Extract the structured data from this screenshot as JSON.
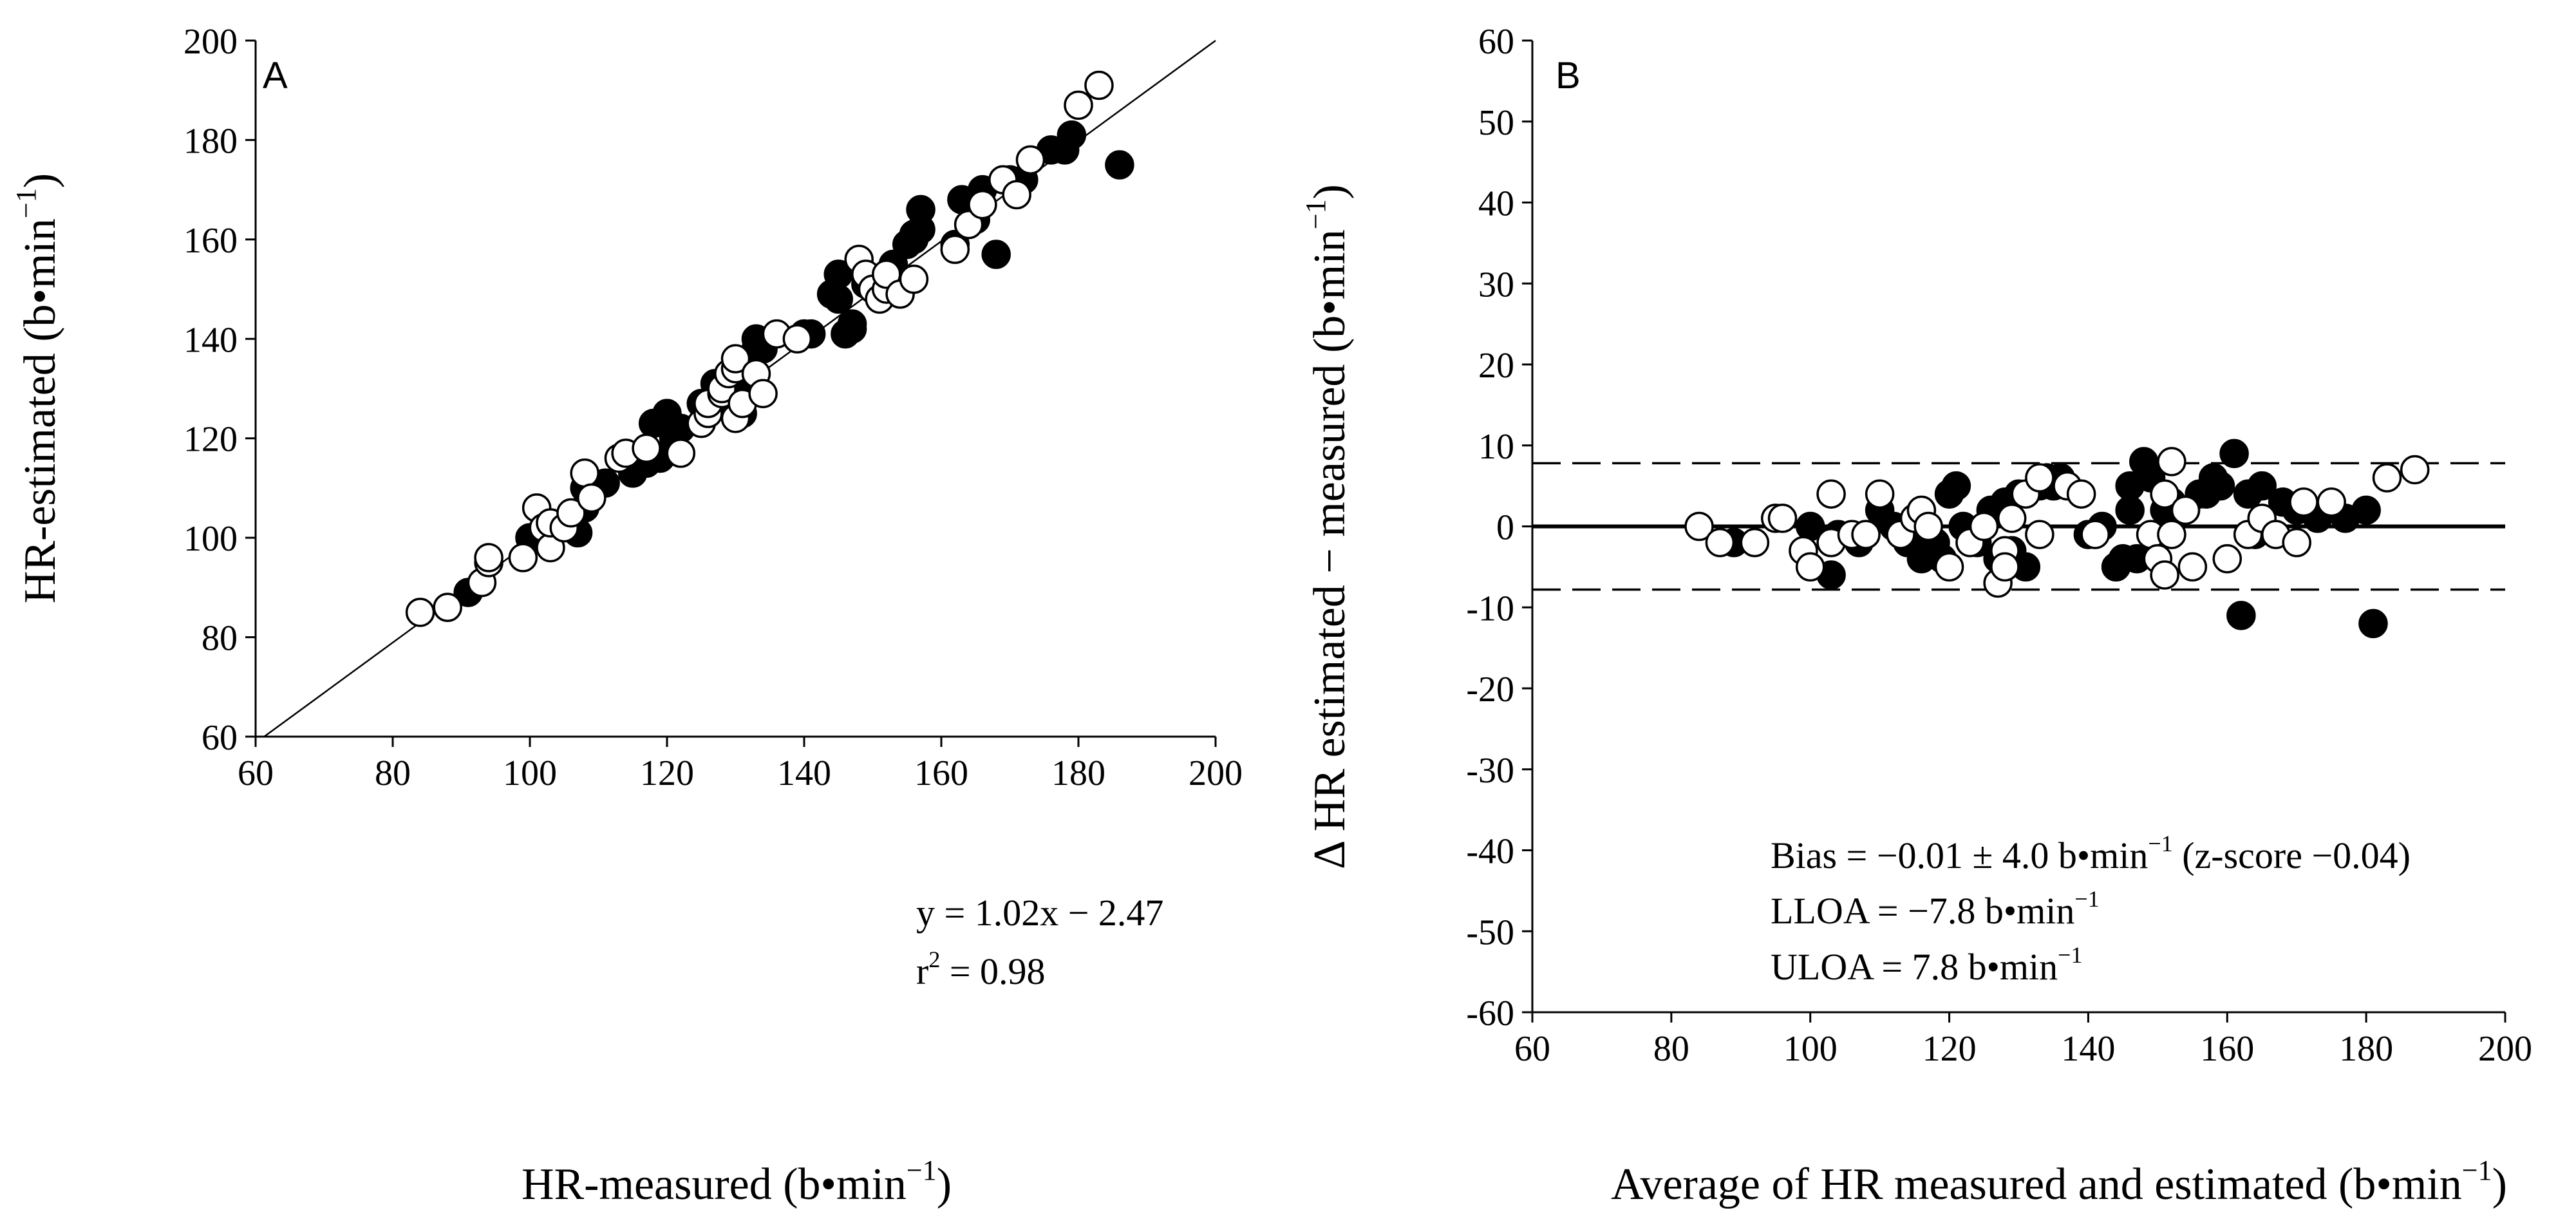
{
  "colors": {
    "ink": "#000000",
    "paper": "#ffffff"
  },
  "chart_data": [
    {
      "type": "scatter",
      "panel_label": "A",
      "title": "",
      "xlabel": "HR-measured (b•min",
      "xlabel_sup": "−1",
      "xlabel_close": ")",
      "ylabel": "HR-estimated (b•min",
      "ylabel_sup": "−1",
      "ylabel_close": ")",
      "xlim": [
        60,
        200
      ],
      "ylim": [
        60,
        200
      ],
      "xticks": [
        "60",
        "80",
        "100",
        "120",
        "140",
        "160",
        "180",
        "200"
      ],
      "yticks": [
        "60",
        "80",
        "100",
        "120",
        "140",
        "160",
        "180",
        "200"
      ],
      "regression": {
        "slope": 1.02,
        "intercept": -2.47
      },
      "annotations": {
        "equation": "y = 1.02x − 2.47",
        "r2_prefix": "r",
        "r2_sup": "2",
        "r2_value": " = 0.98"
      },
      "series": [
        {
          "name": "filled",
          "marker": "filled-circle",
          "points": [
            [
              91,
              89
            ],
            [
              100,
              100
            ],
            [
              107,
              101
            ],
            [
              108,
              106
            ],
            [
              108,
              110
            ],
            [
              111,
              111
            ],
            [
              115,
              113
            ],
            [
              117,
              115
            ],
            [
              118,
              123
            ],
            [
              119,
              116
            ],
            [
              120,
              124
            ],
            [
              120,
              125
            ],
            [
              121,
              120
            ],
            [
              122,
              122
            ],
            [
              125,
              127
            ],
            [
              127,
              131
            ],
            [
              128,
              128
            ],
            [
              131,
              125
            ],
            [
              132,
              130
            ],
            [
              133,
              138
            ],
            [
              133,
              140
            ],
            [
              134,
              138
            ],
            [
              140,
              141
            ],
            [
              141,
              141
            ],
            [
              144,
              149
            ],
            [
              145,
              148
            ],
            [
              145,
              153
            ],
            [
              146,
              141
            ],
            [
              147,
              142
            ],
            [
              147,
              143
            ],
            [
              149,
              151
            ],
            [
              153,
              155
            ],
            [
              155,
              159
            ],
            [
              156,
              160
            ],
            [
              156,
              161
            ],
            [
              157,
              166
            ],
            [
              157,
              162
            ],
            [
              162,
              159
            ],
            [
              163,
              168
            ],
            [
              165,
              164
            ],
            [
              165,
              166
            ],
            [
              166,
              170
            ],
            [
              168,
              157
            ],
            [
              170,
              172
            ],
            [
              172,
              172
            ],
            [
              176,
              178
            ],
            [
              178,
              178
            ],
            [
              179,
              181
            ],
            [
              186,
              175
            ]
          ]
        },
        {
          "name": "open",
          "marker": "open-circle",
          "points": [
            [
              84,
              85
            ],
            [
              88,
              86
            ],
            [
              93,
              91
            ],
            [
              94,
              95
            ],
            [
              94,
              96
            ],
            [
              99,
              96
            ],
            [
              101,
              106
            ],
            [
              102,
              102
            ],
            [
              103,
              98
            ],
            [
              103,
              103
            ],
            [
              105,
              102
            ],
            [
              106,
              105
            ],
            [
              108,
              113
            ],
            [
              109,
              108
            ],
            [
              113,
              116
            ],
            [
              114,
              117
            ],
            [
              117,
              118
            ],
            [
              122,
              117
            ],
            [
              125,
              123
            ],
            [
              126,
              125
            ],
            [
              126,
              127
            ],
            [
              128,
              129
            ],
            [
              128,
              130
            ],
            [
              129,
              133
            ],
            [
              130,
              124
            ],
            [
              130,
              134
            ],
            [
              130,
              136
            ],
            [
              131,
              127
            ],
            [
              133,
              133
            ],
            [
              134,
              129
            ],
            [
              136,
              141
            ],
            [
              139,
              140
            ],
            [
              148,
              156
            ],
            [
              149,
              153
            ],
            [
              150,
              150
            ],
            [
              151,
              148
            ],
            [
              152,
              150
            ],
            [
              152,
              153
            ],
            [
              154,
              149
            ],
            [
              156,
              152
            ],
            [
              162,
              158
            ],
            [
              164,
              163
            ],
            [
              166,
              167
            ],
            [
              169,
              172
            ],
            [
              171,
              169
            ],
            [
              173,
              176
            ],
            [
              180,
              187
            ],
            [
              183,
              191
            ]
          ]
        }
      ]
    },
    {
      "type": "scatter",
      "panel_label": "B",
      "title": "",
      "xlabel": "Average of HR measured and estimated (b•min",
      "xlabel_sup": "−1",
      "xlabel_close": ")",
      "ylabel": "Δ HR estimated − measured (b•min",
      "ylabel_sup": "−1",
      "ylabel_close": ")",
      "xlim": [
        60,
        200
      ],
      "ylim": [
        -60,
        60
      ],
      "xticks": [
        "60",
        "80",
        "100",
        "120",
        "140",
        "160",
        "180",
        "200"
      ],
      "yticks": [
        "60",
        "50",
        "40",
        "30",
        "20",
        "10",
        "0",
        "-10",
        "-20",
        "-30",
        "-40",
        "-50",
        "-60"
      ],
      "bias": 0,
      "lloa": -7.8,
      "uloa": 7.8,
      "annotations": {
        "bias_text": "Bias = −0.01 ± 4.0 b•min",
        "bias_sup": "−1",
        "bias_tail": " (z-score −0.04)",
        "lloa_text": "LLOA = −7.8 b•min",
        "lloa_sup": "−1",
        "uloa_text": "ULOA = 7.8 b•min",
        "uloa_sup": "−1"
      },
      "series": [
        {
          "name": "filled",
          "marker": "filled-circle",
          "points": [
            [
              89,
              -2
            ],
            [
              100,
              0
            ],
            [
              103,
              -6
            ],
            [
              104,
              -1
            ],
            [
              107,
              -2
            ],
            [
              108,
              -1
            ],
            [
              110,
              2
            ],
            [
              112,
              0
            ],
            [
              114,
              -2
            ],
            [
              116,
              -4
            ],
            [
              118,
              -2
            ],
            [
              119,
              -4
            ],
            [
              120,
              4
            ],
            [
              121,
              5
            ],
            [
              122,
              0
            ],
            [
              124,
              -2
            ],
            [
              126,
              2
            ],
            [
              127,
              -4
            ],
            [
              128,
              3
            ],
            [
              129,
              -3
            ],
            [
              130,
              4
            ],
            [
              131,
              -5
            ],
            [
              133,
              5
            ],
            [
              134,
              6
            ],
            [
              135,
              5
            ],
            [
              136,
              6
            ],
            [
              140,
              -1
            ],
            [
              142,
              0
            ],
            [
              144,
              -5
            ],
            [
              145,
              -4
            ],
            [
              146,
              2
            ],
            [
              146,
              5
            ],
            [
              147,
              -4
            ],
            [
              148,
              8
            ],
            [
              149,
              6
            ],
            [
              151,
              2
            ],
            [
              152,
              3
            ],
            [
              153,
              2
            ],
            [
              154,
              2
            ],
            [
              156,
              4
            ],
            [
              157,
              4
            ],
            [
              158,
              6
            ],
            [
              159,
              5
            ],
            [
              161,
              9
            ],
            [
              162,
              -11
            ],
            [
              163,
              4
            ],
            [
              164,
              -1
            ],
            [
              165,
              5
            ],
            [
              168,
              3
            ],
            [
              170,
              2
            ],
            [
              173,
              1
            ],
            [
              177,
              1
            ],
            [
              180,
              2
            ],
            [
              181,
              -12
            ]
          ]
        },
        {
          "name": "open",
          "marker": "open-circle",
          "points": [
            [
              84,
              0
            ],
            [
              87,
              -2
            ],
            [
              92,
              -2
            ],
            [
              95,
              1
            ],
            [
              96,
              1
            ],
            [
              99,
              -3
            ],
            [
              100,
              -5
            ],
            [
              103,
              -2
            ],
            [
              103,
              4
            ],
            [
              106,
              -1
            ],
            [
              108,
              -1
            ],
            [
              110,
              4
            ],
            [
              113,
              -1
            ],
            [
              115,
              1
            ],
            [
              116,
              2
            ],
            [
              117,
              0
            ],
            [
              120,
              -5
            ],
            [
              123,
              -2
            ],
            [
              125,
              0
            ],
            [
              127,
              -7
            ],
            [
              128,
              -3
            ],
            [
              128,
              -5
            ],
            [
              129,
              1
            ],
            [
              131,
              4
            ],
            [
              133,
              -1
            ],
            [
              133,
              6
            ],
            [
              137,
              5
            ],
            [
              139,
              4
            ],
            [
              141,
              -1
            ],
            [
              149,
              -1
            ],
            [
              150,
              -4
            ],
            [
              151,
              4
            ],
            [
              151,
              -6
            ],
            [
              152,
              -1
            ],
            [
              152,
              8
            ],
            [
              154,
              2
            ],
            [
              155,
              -5
            ],
            [
              160,
              -4
            ],
            [
              163,
              -1
            ],
            [
              165,
              1
            ],
            [
              167,
              -1
            ],
            [
              170,
              -2
            ],
            [
              171,
              3
            ],
            [
              175,
              3
            ],
            [
              183,
              6
            ],
            [
              187,
              7
            ]
          ]
        }
      ]
    }
  ]
}
